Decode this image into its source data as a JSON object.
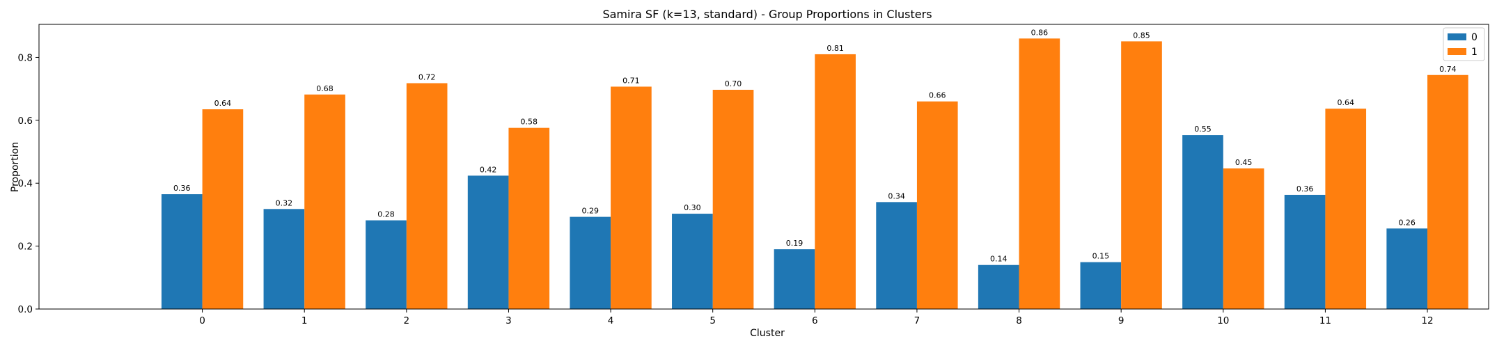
{
  "chart_data": {
    "type": "bar",
    "title": "Samira SF (k=13, standard) - Group Proportions in Clusters",
    "xlabel": "Cluster",
    "ylabel": "Proportion",
    "categories": [
      "0",
      "1",
      "2",
      "3",
      "4",
      "5",
      "6",
      "7",
      "8",
      "9",
      "10",
      "11",
      "12"
    ],
    "series": [
      {
        "name": "0",
        "color": "#1f77b4",
        "values": [
          0.365,
          0.318,
          0.282,
          0.424,
          0.293,
          0.303,
          0.19,
          0.34,
          0.14,
          0.149,
          0.553,
          0.363,
          0.256
        ],
        "labels": [
          "0.36",
          "0.32",
          "0.28",
          "0.42",
          "0.29",
          "0.30",
          "0.19",
          "0.34",
          "0.14",
          "0.15",
          "0.55",
          "0.36",
          "0.26"
        ]
      },
      {
        "name": "1",
        "color": "#ff7f0e",
        "values": [
          0.635,
          0.682,
          0.718,
          0.576,
          0.707,
          0.697,
          0.81,
          0.66,
          0.86,
          0.851,
          0.447,
          0.637,
          0.744
        ],
        "labels": [
          "0.64",
          "0.68",
          "0.72",
          "0.58",
          "0.71",
          "0.70",
          "0.81",
          "0.66",
          "0.86",
          "0.85",
          "0.45",
          "0.64",
          "0.74"
        ]
      }
    ],
    "ylim": [
      0,
      0.905
    ],
    "xlim": [
      -1.6,
      12.6
    ],
    "yticks": [
      0.0,
      0.2,
      0.4,
      0.6,
      0.8
    ],
    "ytick_labels": [
      "0.0",
      "0.2",
      "0.4",
      "0.6",
      "0.8"
    ],
    "bar_width": 0.4,
    "grid": false,
    "legend_position": "top-right"
  }
}
